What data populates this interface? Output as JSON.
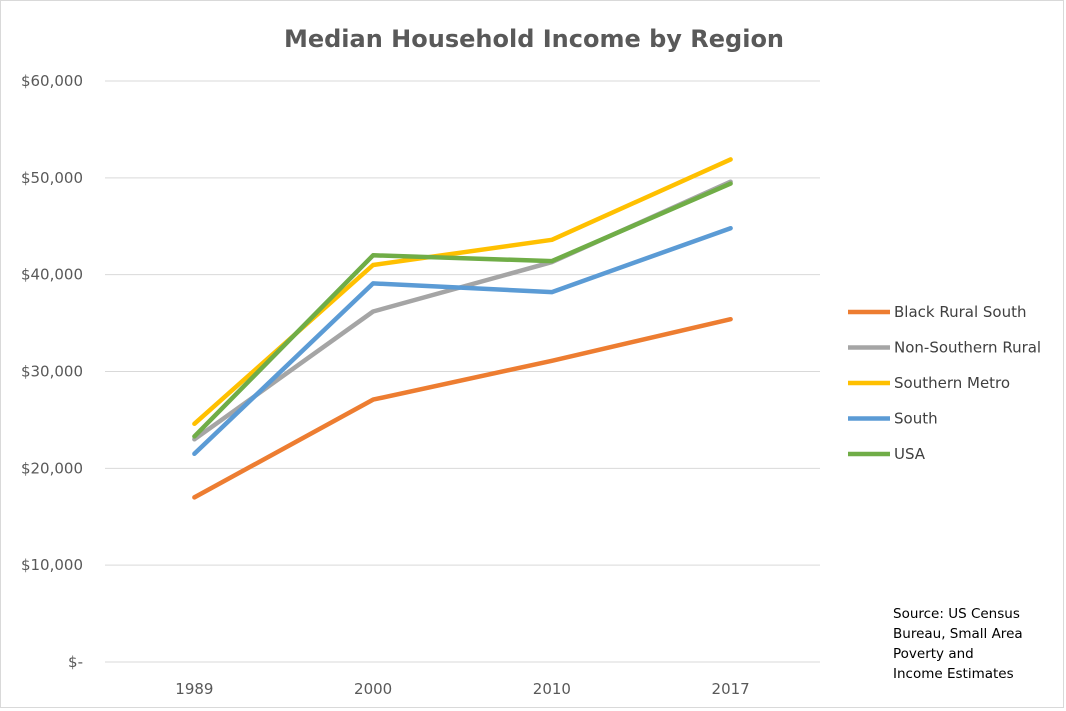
{
  "chart_data": {
    "type": "line",
    "title": "Median Household Income by Region",
    "categories": [
      "1989",
      "2000",
      "2010",
      "2017"
    ],
    "y_ticks": [
      "$-",
      "$10,000",
      "$20,000",
      "$30,000",
      "$40,000",
      "$50,000",
      "$60,000"
    ],
    "ylim": [
      0,
      60000
    ],
    "y_tick_step": 10000,
    "grid": "horizontal",
    "legend_position": "right",
    "series": [
      {
        "name": "Black Rural South",
        "color": "#ED7D31",
        "values": [
          17000,
          27100,
          31100,
          35400
        ]
      },
      {
        "name": "Non-Southern Rural",
        "color": "#A5A5A5",
        "values": [
          23000,
          36200,
          41300,
          49600
        ]
      },
      {
        "name": "Southern Metro",
        "color": "#FFC000",
        "values": [
          24600,
          41000,
          43600,
          51900
        ]
      },
      {
        "name": "South",
        "color": "#5B9BD5",
        "values": [
          21500,
          39100,
          38200,
          44800
        ]
      },
      {
        "name": "USA",
        "color": "#70AD47",
        "values": [
          23300,
          42000,
          41400,
          49400
        ]
      }
    ]
  },
  "source_note": [
    "Source: US Census",
    "Bureau, Small Area",
    "Poverty and",
    "Income Estimates"
  ]
}
